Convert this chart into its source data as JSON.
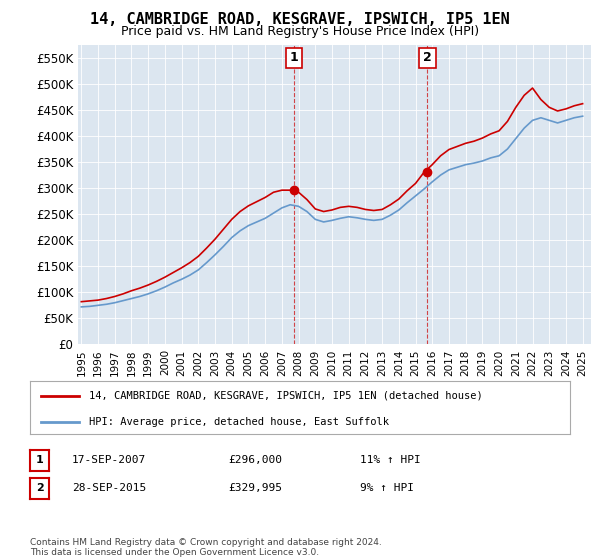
{
  "title": "14, CAMBRIDGE ROAD, KESGRAVE, IPSWICH, IP5 1EN",
  "subtitle": "Price paid vs. HM Land Registry's House Price Index (HPI)",
  "legend_line1": "14, CAMBRIDGE ROAD, KESGRAVE, IPSWICH, IP5 1EN (detached house)",
  "legend_line2": "HPI: Average price, detached house, East Suffolk",
  "annotation1_date": "17-SEP-2007",
  "annotation1_price": "£296,000",
  "annotation1_hpi": "11% ↑ HPI",
  "annotation2_date": "28-SEP-2015",
  "annotation2_price": "£329,995",
  "annotation2_hpi": "9% ↑ HPI",
  "footer": "Contains HM Land Registry data © Crown copyright and database right 2024.\nThis data is licensed under the Open Government Licence v3.0.",
  "red_color": "#cc0000",
  "blue_color": "#6699cc",
  "plot_bg_color": "#dce6f0",
  "ylim": [
    0,
    575000
  ],
  "yticks": [
    0,
    50000,
    100000,
    150000,
    200000,
    250000,
    300000,
    350000,
    400000,
    450000,
    500000,
    550000
  ]
}
